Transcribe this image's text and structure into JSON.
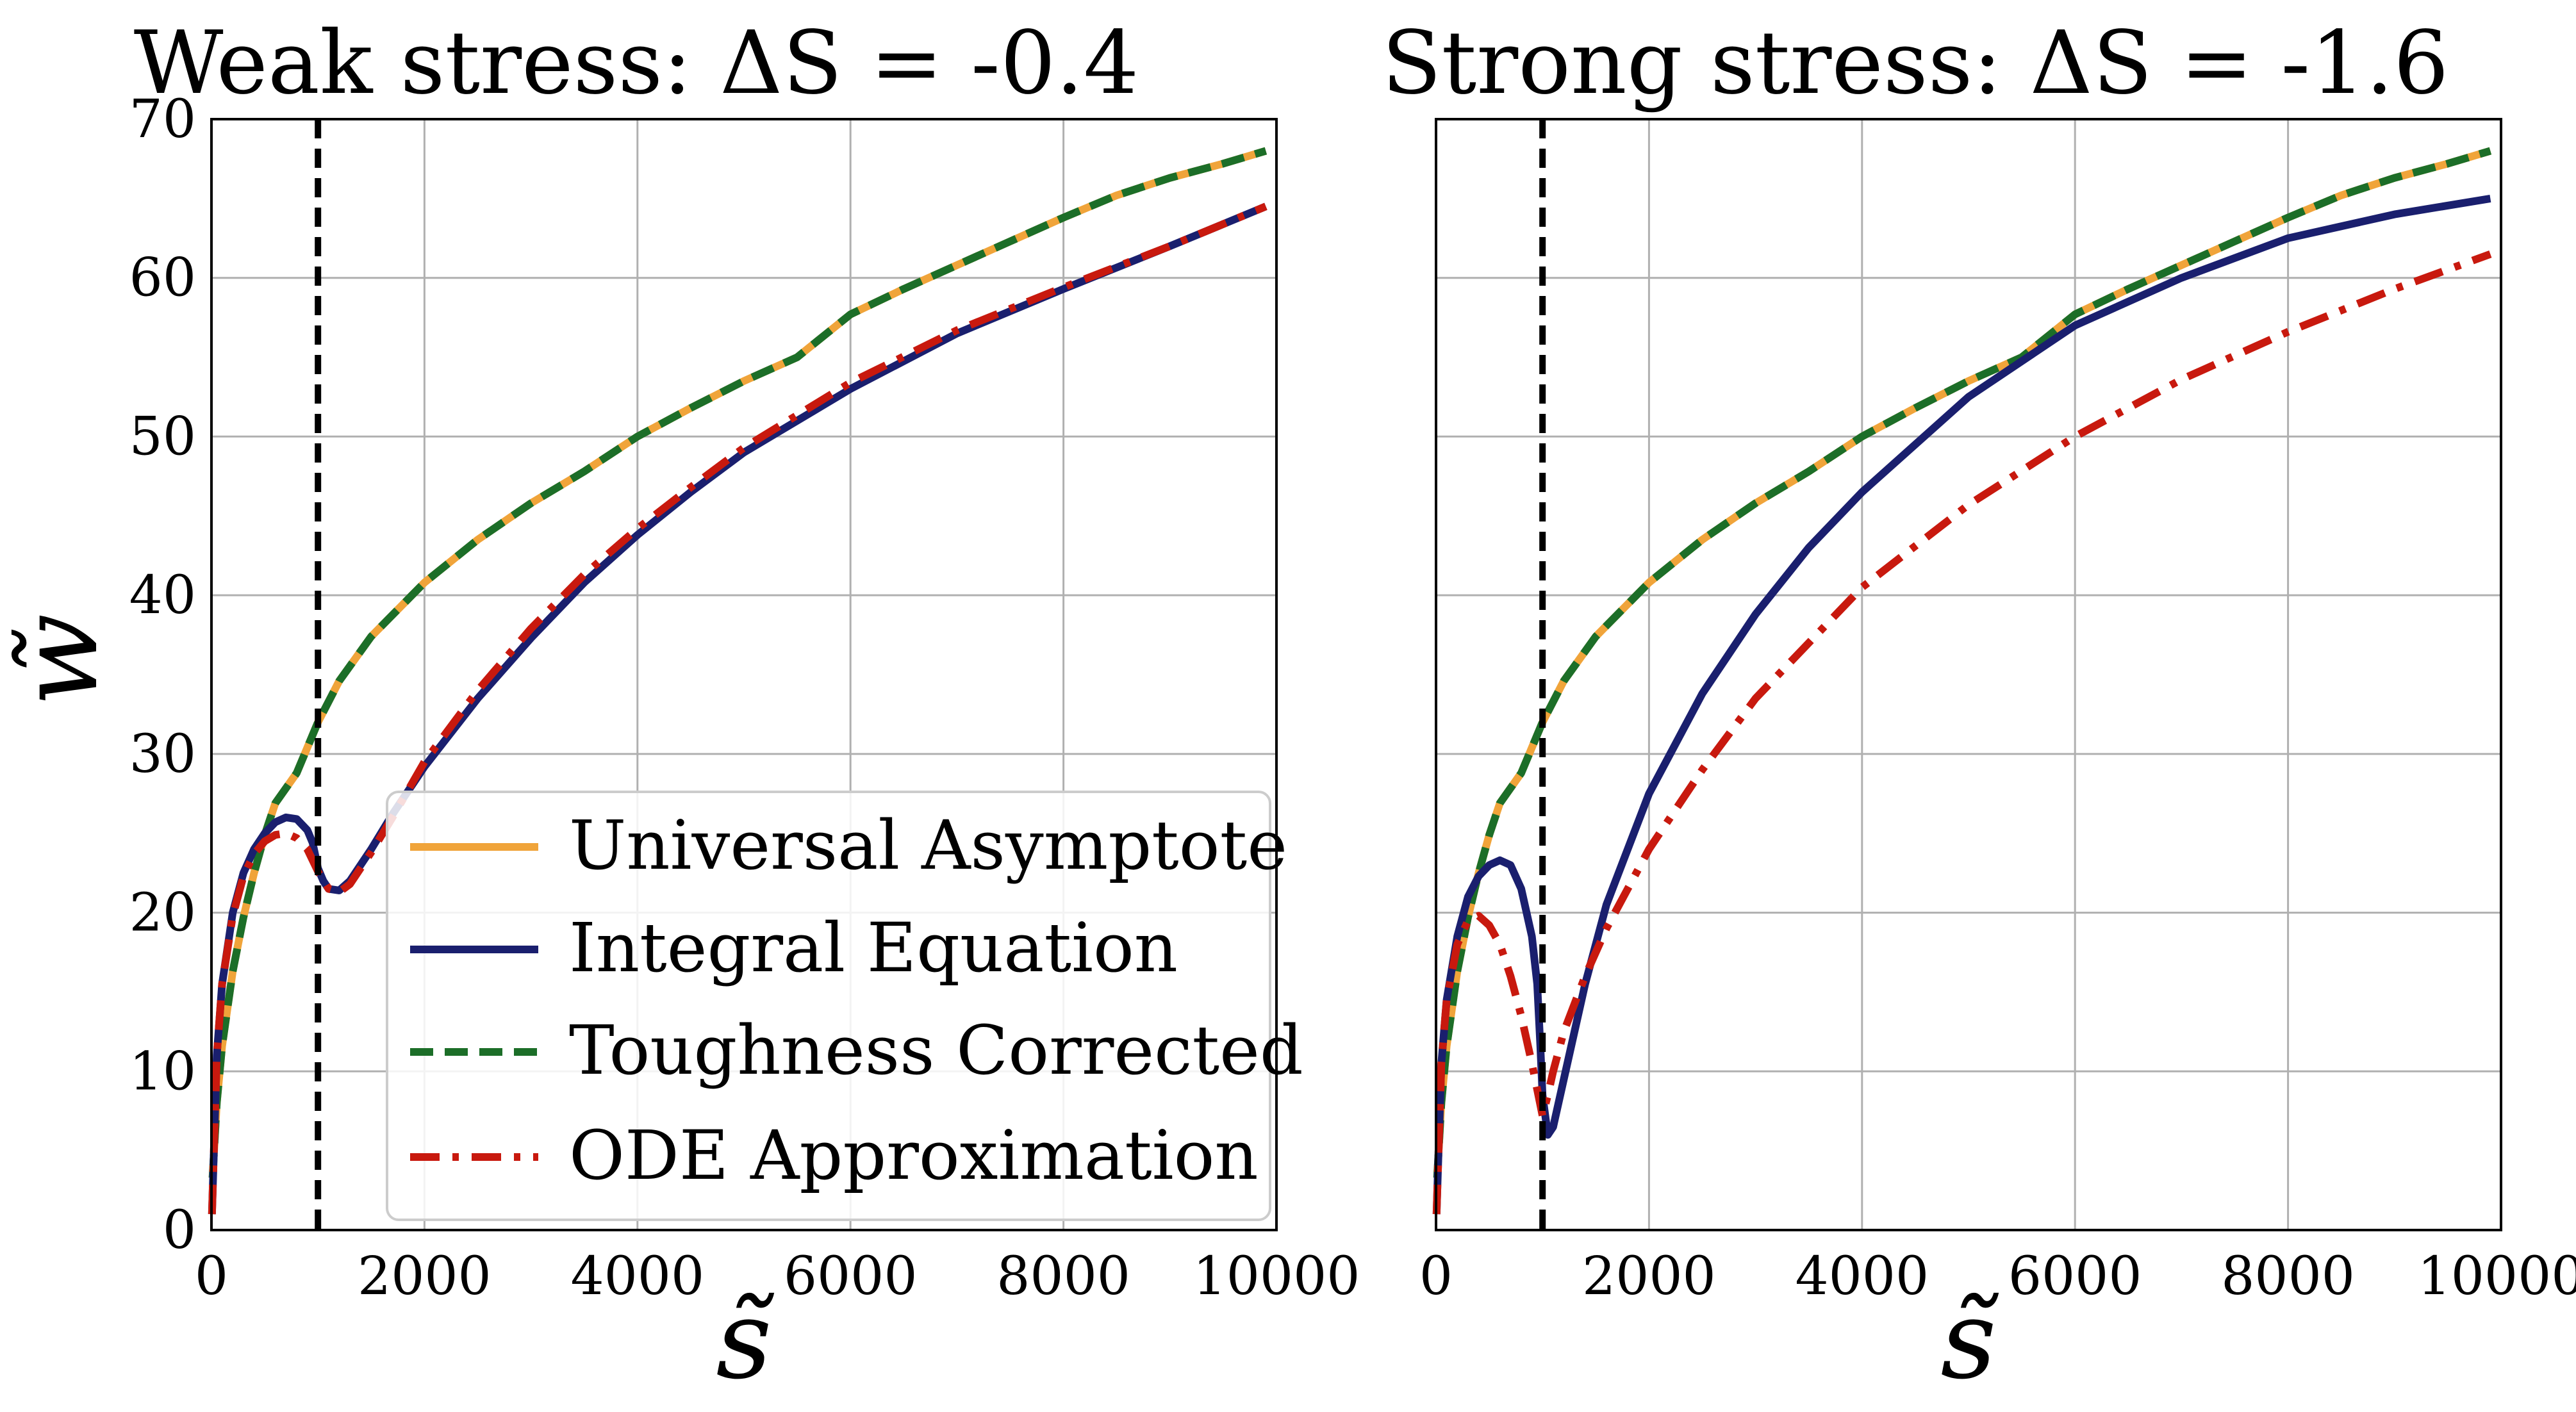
{
  "colors": {
    "universal": "#f0a43a",
    "integral": "#1a1f6e",
    "toughness": "#1c6e28",
    "ode": "#c8190e",
    "grid": "#b0b0b0",
    "vline": "#000000"
  },
  "chart_data": [
    {
      "type": "line",
      "title": "Weak stress: ΔS = -0.4",
      "xlabel": "s̃",
      "ylabel": "w̃",
      "xlim": [
        0,
        10000
      ],
      "ylim": [
        0,
        70
      ],
      "xticks": [
        "0",
        "2000",
        "4000",
        "6000",
        "8000",
        "10000"
      ],
      "yticks": [
        "0",
        "10",
        "20",
        "30",
        "40",
        "50",
        "60",
        "70"
      ],
      "grid": true,
      "vline_x": 1000,
      "legend": {
        "placement": "lower-right",
        "entries": [
          {
            "label": "Universal Asymptote",
            "series": "universal"
          },
          {
            "label": "Integral Equation",
            "series": "integral"
          },
          {
            "label": "Toughness Corrected",
            "series": "toughness"
          },
          {
            "label": "ODE Approximation",
            "series": "ode"
          }
        ]
      },
      "series": [
        {
          "name": "Universal Asymptote",
          "key": "universal",
          "style": "solid",
          "x": [
            10,
            50,
            100,
            200,
            300,
            400,
            500,
            600,
            800,
            1000,
            1200,
            1500,
            2000,
            2500,
            3000,
            3500,
            4000,
            4500,
            5000,
            5500,
            6000,
            6500,
            7000,
            7500,
            8000,
            8500,
            9000,
            9500,
            9900
          ],
          "y": [
            3.3,
            8.0,
            11.6,
            16.3,
            19.7,
            22.5,
            24.9,
            26.9,
            28.8,
            32.0,
            34.6,
            37.4,
            40.8,
            43.5,
            45.8,
            47.8,
            50.0,
            51.8,
            53.5,
            55.0,
            57.7,
            59.3,
            60.8,
            62.3,
            63.8,
            65.2,
            66.3,
            67.2,
            68.0
          ]
        },
        {
          "name": "Toughness Corrected",
          "key": "toughness",
          "style": "dashed",
          "x": [
            10,
            50,
            100,
            200,
            300,
            400,
            500,
            600,
            800,
            1000,
            1200,
            1500,
            2000,
            2500,
            3000,
            3500,
            4000,
            4500,
            5000,
            5500,
            6000,
            6500,
            7000,
            7500,
            8000,
            8500,
            9000,
            9500,
            9900
          ],
          "y": [
            3.3,
            8.0,
            11.6,
            16.3,
            19.7,
            22.5,
            24.9,
            26.9,
            28.8,
            32.0,
            34.6,
            37.4,
            40.8,
            43.5,
            45.8,
            47.8,
            50.0,
            51.8,
            53.5,
            55.0,
            57.7,
            59.3,
            60.8,
            62.3,
            63.8,
            65.2,
            66.3,
            67.2,
            68.0
          ]
        },
        {
          "name": "Integral Equation",
          "key": "integral",
          "style": "solid",
          "x": [
            5,
            50,
            100,
            200,
            300,
            400,
            500,
            600,
            700,
            800,
            900,
            950,
            1000,
            1050,
            1100,
            1200,
            1300,
            1500,
            1700,
            2000,
            2500,
            3000,
            3500,
            4000,
            4500,
            5000,
            6000,
            7000,
            8000,
            9000,
            9900
          ],
          "y": [
            1.0,
            11.0,
            15.5,
            20.0,
            22.5,
            24.0,
            25.0,
            25.7,
            26.0,
            25.9,
            25.2,
            24.4,
            22.8,
            22.0,
            21.5,
            21.4,
            22.0,
            24.0,
            26.2,
            29.2,
            33.5,
            37.3,
            40.8,
            43.8,
            46.5,
            49.0,
            53.0,
            56.5,
            59.3,
            62.0,
            64.5
          ]
        },
        {
          "name": "ODE Approximation",
          "key": "ode",
          "style": "dashdot",
          "x": [
            5,
            50,
            100,
            200,
            300,
            400,
            500,
            600,
            700,
            800,
            900,
            1000,
            1100,
            1200,
            1300,
            1500,
            1700,
            2000,
            2500,
            3000,
            3500,
            4000,
            4500,
            5000,
            6000,
            7000,
            8000,
            9000,
            9900
          ],
          "y": [
            1.0,
            11.0,
            15.5,
            19.8,
            22.3,
            23.7,
            24.5,
            24.9,
            25.0,
            24.7,
            24.0,
            22.6,
            21.5,
            21.3,
            21.8,
            23.8,
            26.0,
            29.5,
            34.0,
            37.9,
            41.3,
            44.2,
            46.8,
            49.3,
            53.4,
            56.7,
            59.4,
            62.0,
            64.5
          ]
        }
      ]
    },
    {
      "type": "line",
      "title": "Strong stress: ΔS = -1.6",
      "xlabel": "s̃",
      "ylabel": "",
      "xlim": [
        0,
        10000
      ],
      "ylim": [
        0,
        70
      ],
      "xticks": [
        "0",
        "2000",
        "4000",
        "6000",
        "8000",
        "10000"
      ],
      "yticks": [],
      "grid": true,
      "vline_x": 1000,
      "series": [
        {
          "name": "Universal Asymptote",
          "key": "universal",
          "style": "solid",
          "x": [
            10,
            50,
            100,
            200,
            300,
            400,
            500,
            600,
            800,
            1000,
            1200,
            1500,
            2000,
            2500,
            3000,
            3500,
            4000,
            4500,
            5000,
            5500,
            6000,
            6500,
            7000,
            7500,
            8000,
            8500,
            9000,
            9500,
            9900
          ],
          "y": [
            3.3,
            8.0,
            11.6,
            16.3,
            19.7,
            22.5,
            24.9,
            26.9,
            28.8,
            32.0,
            34.6,
            37.4,
            40.8,
            43.5,
            45.8,
            47.8,
            50.0,
            51.8,
            53.5,
            55.0,
            57.7,
            59.3,
            60.8,
            62.3,
            63.8,
            65.2,
            66.3,
            67.2,
            68.0
          ]
        },
        {
          "name": "Toughness Corrected",
          "key": "toughness",
          "style": "dashed",
          "x": [
            10,
            50,
            100,
            200,
            300,
            400,
            500,
            600,
            800,
            1000,
            1200,
            1500,
            2000,
            2500,
            3000,
            3500,
            4000,
            4500,
            5000,
            5500,
            6000,
            6500,
            7000,
            7500,
            8000,
            8500,
            9000,
            9500,
            9900
          ],
          "y": [
            3.3,
            8.0,
            11.6,
            16.3,
            19.7,
            22.5,
            24.9,
            26.9,
            28.8,
            32.0,
            34.6,
            37.4,
            40.8,
            43.5,
            45.8,
            47.8,
            50.0,
            51.8,
            53.5,
            55.0,
            57.7,
            59.3,
            60.8,
            62.3,
            63.8,
            65.2,
            66.3,
            67.2,
            68.0
          ]
        },
        {
          "name": "Integral Equation",
          "key": "integral",
          "style": "solid",
          "x": [
            5,
            50,
            100,
            200,
            300,
            400,
            500,
            600,
            700,
            800,
            900,
            950,
            980,
            1000,
            1050,
            1100,
            1200,
            1400,
            1600,
            2000,
            2500,
            3000,
            3500,
            4000,
            5000,
            6000,
            7000,
            8000,
            9000,
            9900
          ],
          "y": [
            1.0,
            10.5,
            14.5,
            18.5,
            21.0,
            22.3,
            23.0,
            23.3,
            23.0,
            21.5,
            18.5,
            15.5,
            11.5,
            8.5,
            6.0,
            6.5,
            9.5,
            15.5,
            20.5,
            27.5,
            33.8,
            38.8,
            43.0,
            46.5,
            52.5,
            57.0,
            60.0,
            62.5,
            64.0,
            65.0
          ]
        },
        {
          "name": "ODE Approximation",
          "key": "ode",
          "style": "dashdot",
          "x": [
            5,
            50,
            100,
            200,
            300,
            400,
            500,
            600,
            700,
            800,
            900,
            1000,
            1050,
            1100,
            1200,
            1400,
            1600,
            2000,
            2500,
            3000,
            3500,
            4000,
            5000,
            6000,
            7000,
            8000,
            9000,
            9900
          ],
          "y": [
            1.0,
            10.5,
            14.5,
            18.0,
            19.5,
            19.8,
            19.2,
            18.0,
            16.0,
            13.5,
            10.5,
            7.2,
            8.5,
            10.0,
            12.5,
            16.0,
            19.0,
            24.0,
            29.0,
            33.5,
            37.0,
            40.5,
            45.7,
            50.0,
            53.6,
            56.6,
            59.3,
            61.5
          ]
        }
      ]
    }
  ]
}
